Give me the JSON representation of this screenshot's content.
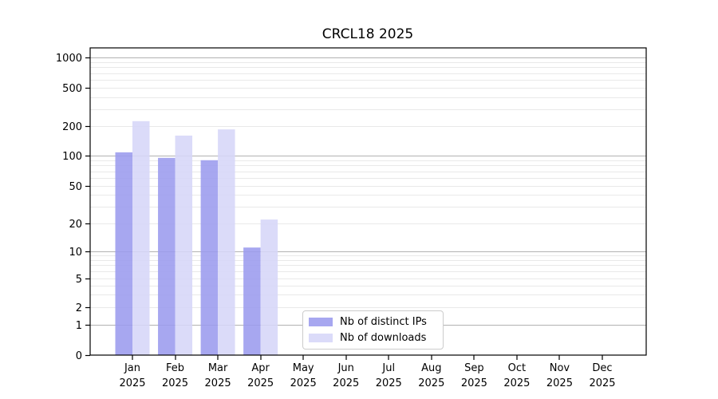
{
  "figure": {
    "title": "CRCL18 2025",
    "background_color": "#ffffff"
  },
  "legend": {
    "items": [
      {
        "label": "Nb of distinct IPs",
        "color": "#9b9bee"
      },
      {
        "label": "Nb of downloads",
        "color": "#d6d6f8"
      }
    ]
  },
  "chart_data": {
    "type": "bar",
    "title": "CRCL18 2025",
    "categories": [
      "Jan",
      "Feb",
      "Mar",
      "Apr",
      "May",
      "Jun",
      "Jul",
      "Aug",
      "Sep",
      "Oct",
      "Nov",
      "Dec"
    ],
    "year_label": "2025",
    "series": [
      {
        "name": "Nb of distinct IPs",
        "color": "#9b9bee",
        "values": [
          108,
          95,
          90,
          11,
          0,
          0,
          0,
          0,
          0,
          0,
          0,
          0
        ]
      },
      {
        "name": "Nb of downloads",
        "color": "#d6d6f8",
        "values": [
          225,
          160,
          185,
          22,
          0,
          0,
          0,
          0,
          0,
          0,
          0,
          0
        ]
      }
    ],
    "y_ticks": [
      0,
      1,
      2,
      5,
      10,
      20,
      50,
      100,
      200,
      500,
      1000
    ],
    "y_scale": "log-with-zero",
    "ylim": [
      0,
      1400
    ],
    "grid": true,
    "grid_major_ticks": [
      1,
      10,
      100,
      1000
    ],
    "grid_major_color": "#b2b2b2",
    "grid_minor_color": "#e9e9e9",
    "legend_position": "lower center",
    "xlabel": "",
    "ylabel": ""
  }
}
